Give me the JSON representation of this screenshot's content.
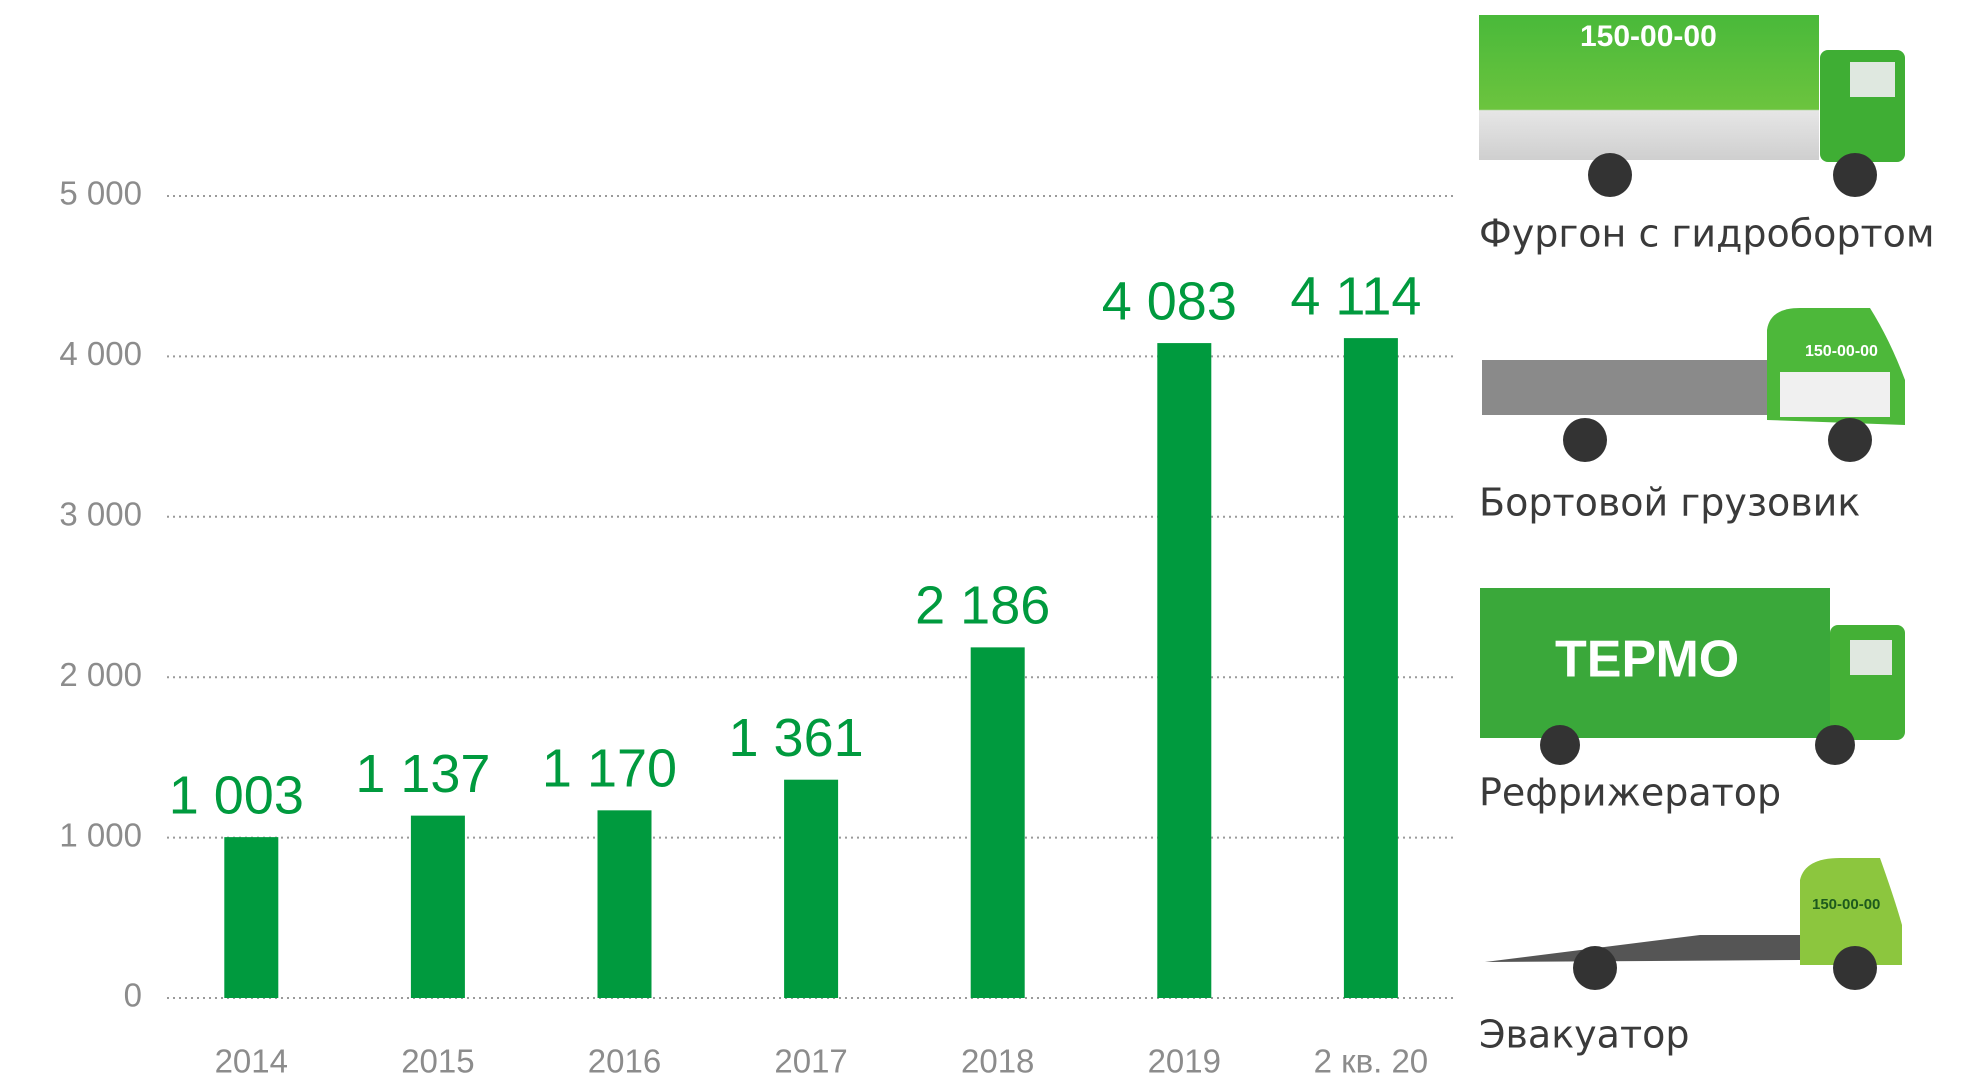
{
  "chart_data": {
    "type": "bar",
    "categories": [
      "2014",
      "2015",
      "2016",
      "2017",
      "2018",
      "2019",
      "2 кв. 20"
    ],
    "values": [
      1003,
      1137,
      1170,
      1361,
      2186,
      4083,
      4114
    ],
    "value_labels": [
      "1 003",
      "1 137",
      "1 170",
      "1 361",
      "2 186",
      "4 083",
      "4 114"
    ],
    "color": "#009a3e",
    "category_label_colors": [
      "#8c8c8c",
      "#8c8c8c",
      "#8c8c8c",
      "#8c8c8c",
      "#8c8c8c",
      "#8c8c8c",
      "#009a3e"
    ],
    "ylim": [
      0,
      5000
    ],
    "yticks": [
      0,
      {
        "value": 1000,
        "label": "1 000"
      },
      {
        "value": 2000,
        "label": "2 000"
      },
      {
        "value": 3000,
        "label": "3 000"
      },
      {
        "value": 4000,
        "label": "4 000"
      },
      {
        "value": 5000,
        "label": "5 000"
      }
    ],
    "grid": true
  },
  "vehicles": [
    {
      "caption": "Фургон с гидробортом",
      "sign": "150-00-00"
    },
    {
      "caption": "Бортовой грузовик",
      "sign": "150-00-00"
    },
    {
      "caption": "Рефрижератор",
      "sign": "ТЕРМО"
    },
    {
      "caption": "Эвакуатор",
      "sign": "150-00-00"
    }
  ]
}
